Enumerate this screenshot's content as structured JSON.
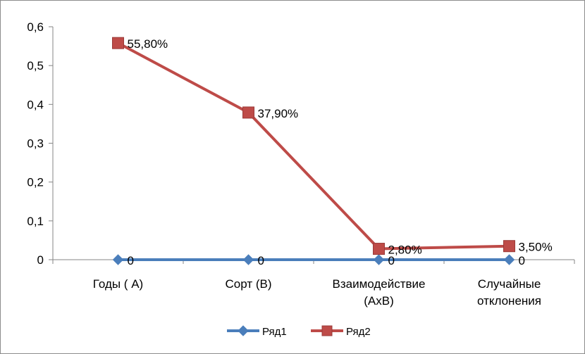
{
  "chart_data": {
    "type": "line",
    "categories": [
      [
        "Годы ( А)"
      ],
      [
        "Сорт (В)"
      ],
      [
        "Взаимодействие",
        "(АхВ)"
      ],
      [
        "Случайные",
        "отклонения"
      ]
    ],
    "ylim": [
      0,
      0.6
    ],
    "y_ticks": [
      "0",
      "0,1",
      "0,2",
      "0,3",
      "0,4",
      "0,5",
      "0,6"
    ],
    "grid": false,
    "legend_position": "bottom",
    "series": [
      {
        "name": "Ряд1",
        "values": [
          0,
          0,
          0,
          0
        ],
        "data_labels": [
          "0",
          "0",
          "0",
          "0"
        ],
        "color": "#4a7ebb",
        "marker": "diamond"
      },
      {
        "name": "Ряд2",
        "values": [
          0.558,
          0.379,
          0.028,
          0.035
        ],
        "data_labels": [
          "55,80%",
          "37,90%",
          "2,80%",
          "3,50%"
        ],
        "color": "#be4b48",
        "marker": "square"
      }
    ]
  }
}
